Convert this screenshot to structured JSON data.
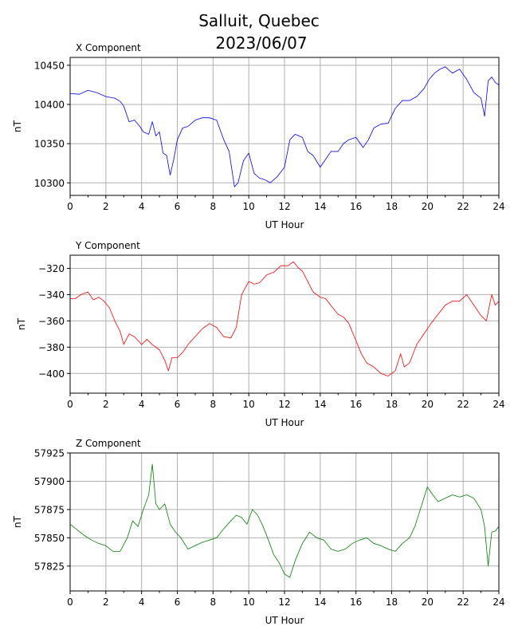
{
  "chart_data": {
    "title_lines": [
      "Salluit, Quebec",
      "2023/06/07"
    ],
    "type": "line",
    "panels": [
      {
        "subtitle": "X Component",
        "xlabel": "UT Hour",
        "ylabel": "nT",
        "color": "#0000ff",
        "xlim": [
          0,
          24
        ],
        "ylim": [
          10284,
          10460
        ],
        "xticks": [
          0,
          2,
          4,
          6,
          8,
          10,
          12,
          14,
          16,
          18,
          20,
          22,
          24
        ],
        "yticks": [
          10300,
          10350,
          10400,
          10450
        ],
        "grid": true,
        "series": {
          "x": [
            0.0,
            0.5,
            1.0,
            1.5,
            2.0,
            2.5,
            2.8,
            3.0,
            3.3,
            3.6,
            3.9,
            4.1,
            4.4,
            4.6,
            4.8,
            5.0,
            5.2,
            5.4,
            5.6,
            5.8,
            6.0,
            6.3,
            6.6,
            7.0,
            7.4,
            7.8,
            8.2,
            8.6,
            8.9,
            9.2,
            9.4,
            9.7,
            10.0,
            10.3,
            10.6,
            10.9,
            11.2,
            11.6,
            12.0,
            12.3,
            12.6,
            13.0,
            13.3,
            13.6,
            14.0,
            14.3,
            14.6,
            15.0,
            15.3,
            15.6,
            16.0,
            16.4,
            16.7,
            17.0,
            17.4,
            17.8,
            18.2,
            18.6,
            19.0,
            19.4,
            19.8,
            20.1,
            20.4,
            20.7,
            21.0,
            21.4,
            21.8,
            22.2,
            22.6,
            23.0,
            23.2,
            23.4,
            23.6,
            23.8,
            24.0
          ],
          "y": [
            10414,
            10413,
            10418,
            10415,
            10410,
            10408,
            10404,
            10398,
            10378,
            10380,
            10372,
            10365,
            10362,
            10378,
            10360,
            10365,
            10338,
            10335,
            10310,
            10330,
            10355,
            10370,
            10372,
            10380,
            10383,
            10383,
            10380,
            10355,
            10340,
            10295,
            10300,
            10328,
            10338,
            10312,
            10306,
            10304,
            10300,
            10308,
            10320,
            10355,
            10362,
            10358,
            10340,
            10335,
            10320,
            10330,
            10340,
            10340,
            10350,
            10355,
            10358,
            10345,
            10355,
            10370,
            10375,
            10376,
            10395,
            10405,
            10405,
            10410,
            10420,
            10432,
            10440,
            10445,
            10448,
            10440,
            10445,
            10432,
            10415,
            10408,
            10385,
            10430,
            10435,
            10428,
            10425
          ]
        }
      },
      {
        "subtitle": "Y Component",
        "xlabel": "UT Hour",
        "ylabel": "nT",
        "color": "#ff0000",
        "xlim": [
          0,
          24
        ],
        "ylim": [
          -415,
          -310
        ],
        "xticks": [
          0,
          2,
          4,
          6,
          8,
          10,
          12,
          14,
          16,
          18,
          20,
          22,
          24
        ],
        "yticks": [
          -320,
          -340,
          -360,
          -380,
          -400
        ],
        "grid": true,
        "series": {
          "x": [
            0.0,
            0.3,
            0.6,
            1.0,
            1.3,
            1.6,
            1.9,
            2.2,
            2.5,
            2.8,
            3.0,
            3.3,
            3.6,
            4.0,
            4.3,
            4.6,
            5.0,
            5.3,
            5.5,
            5.7,
            6.0,
            6.3,
            6.6,
            7.0,
            7.4,
            7.8,
            8.2,
            8.6,
            9.0,
            9.3,
            9.6,
            10.0,
            10.3,
            10.6,
            11.0,
            11.4,
            11.8,
            12.2,
            12.5,
            12.8,
            13.0,
            13.3,
            13.6,
            14.0,
            14.3,
            14.7,
            15.0,
            15.3,
            15.6,
            16.0,
            16.3,
            16.6,
            17.0,
            17.4,
            17.8,
            18.2,
            18.5,
            18.7,
            19.0,
            19.4,
            19.8,
            20.2,
            20.6,
            21.0,
            21.4,
            21.8,
            22.2,
            22.6,
            23.0,
            23.3,
            23.6,
            23.8,
            24.0
          ],
          "y": [
            -343,
            -343,
            -340,
            -338,
            -344,
            -342,
            -345,
            -350,
            -360,
            -368,
            -378,
            -370,
            -372,
            -378,
            -374,
            -378,
            -382,
            -390,
            -398,
            -388,
            -388,
            -384,
            -378,
            -372,
            -366,
            -362,
            -365,
            -372,
            -373,
            -365,
            -340,
            -330,
            -332,
            -331,
            -325,
            -323,
            -318,
            -318,
            -315,
            -320,
            -322,
            -330,
            -338,
            -342,
            -343,
            -350,
            -355,
            -357,
            -362,
            -375,
            -385,
            -392,
            -395,
            -400,
            -402,
            -398,
            -385,
            -395,
            -392,
            -378,
            -370,
            -362,
            -355,
            -348,
            -345,
            -345,
            -340,
            -348,
            -356,
            -360,
            -340,
            -348,
            -345
          ]
        }
      },
      {
        "subtitle": "Z Component",
        "xlabel": "UT Hour",
        "ylabel": "nT",
        "color": "#008000",
        "xlim": [
          0,
          24
        ],
        "ylim": [
          57803,
          57925
        ],
        "xticks": [
          0,
          2,
          4,
          6,
          8,
          10,
          12,
          14,
          16,
          18,
          20,
          22,
          24
        ],
        "yticks": [
          57825,
          57850,
          57875,
          57900,
          57925
        ],
        "grid": true,
        "series": {
          "x": [
            0.0,
            0.4,
            0.8,
            1.2,
            1.6,
            2.0,
            2.4,
            2.8,
            3.2,
            3.5,
            3.8,
            4.1,
            4.4,
            4.6,
            4.8,
            5.0,
            5.3,
            5.6,
            5.9,
            6.2,
            6.6,
            7.0,
            7.4,
            7.8,
            8.2,
            8.6,
            9.0,
            9.3,
            9.6,
            9.9,
            10.2,
            10.5,
            10.8,
            11.1,
            11.4,
            11.7,
            12.0,
            12.3,
            12.6,
            13.0,
            13.4,
            13.8,
            14.2,
            14.6,
            15.0,
            15.4,
            15.8,
            16.2,
            16.6,
            17.0,
            17.4,
            17.8,
            18.2,
            18.6,
            19.0,
            19.3,
            19.6,
            20.0,
            20.3,
            20.6,
            21.0,
            21.4,
            21.8,
            22.2,
            22.6,
            23.0,
            23.2,
            23.4,
            23.6,
            23.8,
            24.0
          ],
          "y": [
            57862,
            57857,
            57852,
            57848,
            57845,
            57843,
            57838,
            57838,
            57850,
            57865,
            57860,
            57875,
            57888,
            57915,
            57880,
            57875,
            57880,
            57862,
            57855,
            57850,
            57840,
            57843,
            57846,
            57848,
            57850,
            57858,
            57865,
            57870,
            57868,
            57862,
            57875,
            57870,
            57860,
            57848,
            57835,
            57828,
            57818,
            57815,
            57830,
            57845,
            57855,
            57850,
            57848,
            57840,
            57838,
            57840,
            57845,
            57848,
            57850,
            57845,
            57843,
            57840,
            57838,
            57845,
            57850,
            57860,
            57875,
            57895,
            57888,
            57882,
            57885,
            57888,
            57886,
            57888,
            57885,
            57875,
            57860,
            57825,
            57855,
            57856,
            57860
          ]
        }
      }
    ]
  }
}
